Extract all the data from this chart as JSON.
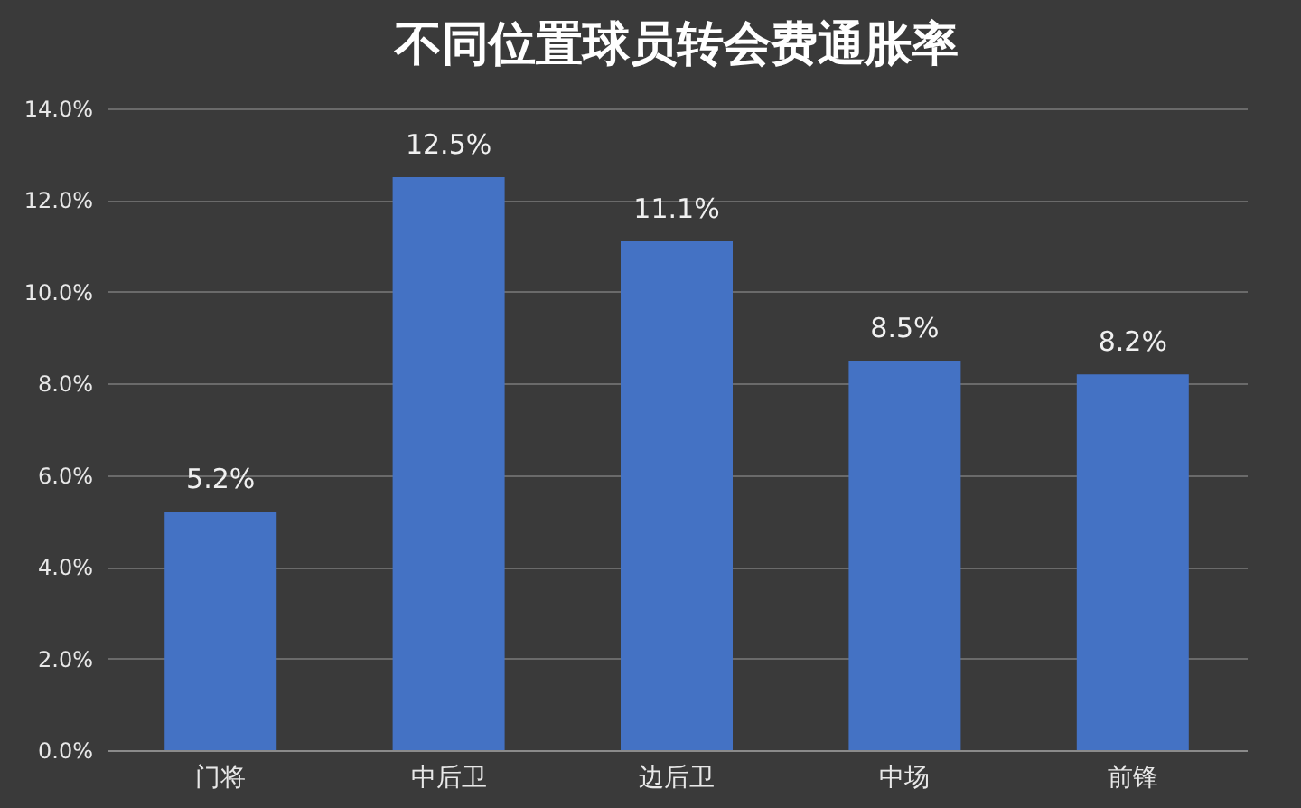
{
  "chart_data": {
    "type": "bar",
    "title": "不同位置球员转会费通胀率",
    "categories": [
      "门将",
      "中后卫",
      "边后卫",
      "中场",
      "前锋"
    ],
    "values": [
      5.2,
      12.5,
      11.1,
      8.5,
      8.2
    ],
    "value_labels": [
      "5.2%",
      "12.5%",
      "11.1%",
      "8.5%",
      "8.2%"
    ],
    "color": "#4472c4",
    "ylim": [
      0,
      14
    ],
    "yticks": [
      {
        "value": 0,
        "label": "0.0%"
      },
      {
        "value": 2,
        "label": "2.0%"
      },
      {
        "value": 4,
        "label": "4.0%"
      },
      {
        "value": 6,
        "label": "6.0%"
      },
      {
        "value": 8,
        "label": "8.0%"
      },
      {
        "value": 10,
        "label": "10.0%"
      },
      {
        "value": 12,
        "label": "12.0%"
      },
      {
        "value": 14,
        "label": "14.0%"
      }
    ],
    "grid": "y"
  }
}
